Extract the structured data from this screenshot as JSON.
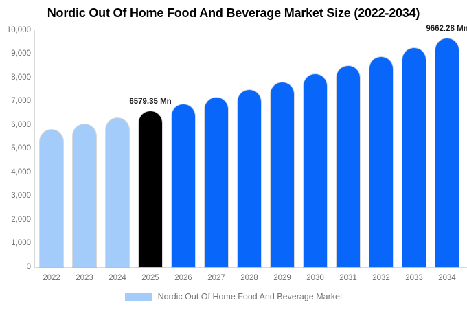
{
  "chart_data": {
    "type": "bar",
    "title": "Nordic Out Of Home Food And Beverage Market Size (2022-2034)",
    "categories": [
      "2022",
      "2023",
      "2024",
      "2025",
      "2026",
      "2027",
      "2028",
      "2029",
      "2030",
      "2031",
      "2032",
      "2033",
      "2034"
    ],
    "series": [
      {
        "name": "Nordic Out Of Home Food And Beverage Market",
        "values": [
          5788,
          6041,
          6304,
          6579.35,
          6866,
          7166,
          7479,
          7805,
          8145,
          8501,
          8872,
          9259,
          9662.28
        ]
      }
    ],
    "bar_colors": [
      "#A3CCFA",
      "#A3CCFA",
      "#A3CCFA",
      "#000000",
      "#0866FA",
      "#0866FA",
      "#0866FA",
      "#0866FA",
      "#0866FA",
      "#0866FA",
      "#0866FA",
      "#0866FA",
      "#0866FA"
    ],
    "xlabel": "",
    "ylabel": "",
    "ylim": [
      0,
      10000
    ],
    "ytick_step": 1000,
    "ytick_labels": [
      "0",
      "1,000",
      "2,000",
      "3,000",
      "4,000",
      "5,000",
      "6,000",
      "7,000",
      "8,000",
      "9,000",
      "10,000"
    ],
    "grid": false,
    "legend_position": "bottom",
    "annotations": [
      {
        "category": "2025",
        "text": "6579.35 Mn"
      },
      {
        "category": "2034",
        "text": "9662.28 Mn"
      }
    ]
  },
  "legend": {
    "label": "Nordic Out Of Home Food And Beverage Market",
    "swatch_color": "#A3CCFA"
  },
  "colors": {
    "historical_bar": "#A3CCFA",
    "base_year_bar": "#000000",
    "forecast_bar": "#0866FA",
    "axis_line": "#D9D9D9",
    "tick_text": "#6E6E6E",
    "data_label_text": "#1A1A1A"
  }
}
